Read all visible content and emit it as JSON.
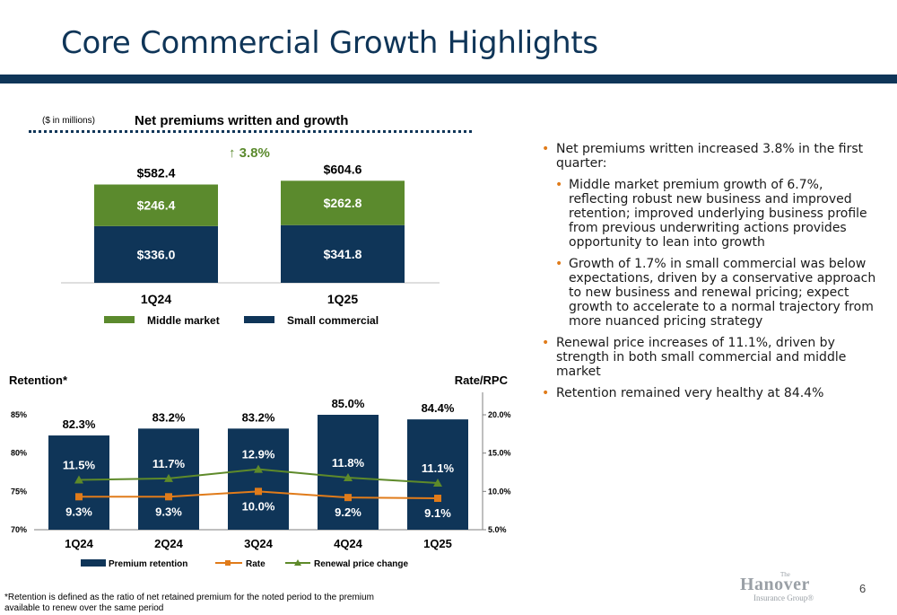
{
  "page": {
    "title": "Core Commercial Growth Highlights",
    "page_number": "6",
    "footnote": "*Retention is defined as the ratio of net retained premium for the noted period to the premium available to renew over the same period",
    "logo": {
      "the": "The",
      "name": "Hanover",
      "sub": "Insurance Group®"
    }
  },
  "colors": {
    "navy": "#0f3558",
    "green": "#5b8a2d",
    "orange": "#e07b1a",
    "olive": "#5e8a2a"
  },
  "bullets": [
    {
      "level": 1,
      "text": "Net premiums written increased 3.8% in the first quarter:"
    },
    {
      "level": 2,
      "text": "Middle market premium growth of 6.7%, reflecting robust new business and improved retention; improved underlying business profile from previous underwriting actions provides opportunity to lean into growth"
    },
    {
      "level": 2,
      "text": "Growth of 1.7% in small commercial was below expectations, driven by a conservative approach to new business and renewal pricing; expect growth to accelerate to a normal trajectory from more nuanced pricing strategy"
    },
    {
      "level": 1,
      "text": "Renewal price increases of 11.1%, driven by strength in both small commercial and middle market"
    },
    {
      "level": 1,
      "text": "Retention remained very healthy at 84.4%"
    }
  ],
  "chart_data": [
    {
      "type": "bar",
      "stacked": true,
      "title": "Net premiums written and growth",
      "subtitle": "($ in millions)",
      "categories": [
        "1Q24",
        "1Q25"
      ],
      "series": [
        {
          "name": "Small commercial",
          "values": [
            336.0,
            341.8
          ],
          "labels": [
            "$336.0",
            "$341.8"
          ],
          "color": "#0f3558"
        },
        {
          "name": "Middle market",
          "values": [
            246.4,
            262.8
          ],
          "labels": [
            "$246.4",
            "$262.8"
          ],
          "color": "#5b8a2d"
        }
      ],
      "totals": [
        "$582.4",
        "$604.6"
      ],
      "growth_label": "↑ 3.8%",
      "legend": "bottom"
    },
    {
      "type": "bar",
      "combo": true,
      "ylabel_left": "Retention*",
      "ylabel_right": "Rate/RPC",
      "categories": [
        "1Q24",
        "2Q24",
        "3Q24",
        "4Q24",
        "1Q25"
      ],
      "left_axis": {
        "ylim": [
          70,
          85
        ],
        "ticks": [
          "70%",
          "75%",
          "80%",
          "85%"
        ],
        "tick_values": [
          70,
          75,
          80,
          85
        ]
      },
      "right_axis": {
        "ylim": [
          5,
          20
        ],
        "ticks": [
          "5.0%",
          "10.0%",
          "15.0%",
          "20.0%"
        ],
        "tick_values": [
          5,
          10,
          15,
          20
        ]
      },
      "series": [
        {
          "name": "Premium retention",
          "kind": "bar",
          "axis": "left",
          "values": [
            82.3,
            83.2,
            83.2,
            85.0,
            84.4
          ],
          "labels": [
            "82.3%",
            "83.2%",
            "83.2%",
            "85.0%",
            "84.4%"
          ],
          "color": "#0f3558"
        },
        {
          "name": "Rate",
          "kind": "line",
          "axis": "right",
          "marker": "square",
          "values": [
            9.3,
            9.3,
            10.0,
            9.2,
            9.1
          ],
          "labels": [
            "9.3%",
            "9.3%",
            "10.0%",
            "9.2%",
            "9.1%"
          ],
          "color": "#e07b1a"
        },
        {
          "name": "Renewal price change",
          "kind": "line",
          "axis": "right",
          "marker": "triangle",
          "values": [
            11.5,
            11.7,
            12.9,
            11.8,
            11.1
          ],
          "labels": [
            "11.5%",
            "11.7%",
            "12.9%",
            "11.8%",
            "11.1%"
          ],
          "color": "#5e8a2a"
        }
      ],
      "legend": "bottom"
    }
  ]
}
